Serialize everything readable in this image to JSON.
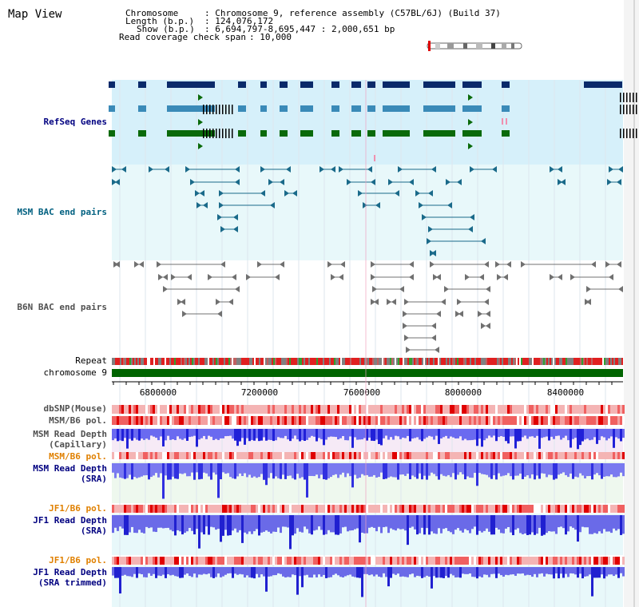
{
  "title": "Map View",
  "info": {
    "chromosome_label": "Chromosome",
    "chromosome_value": ": Chromosome 9, reference assembly (C57BL/6J) (Build 37)",
    "length_label": "Length (b.p.)",
    "length_value": ": 124,076,172",
    "show_label": "Show (b.p.)",
    "show_value": ": 6,694,797-8,695,447 : 2,000,651 bp",
    "coverage_label": "Read coverage check span",
    "coverage_value": ": 10,000"
  },
  "tracks": {
    "refseq": "RefSeq Genes",
    "msm_bac": "MSM BAC end pairs",
    "b6n_bac": "B6N BAC end pairs",
    "repeat": "Repeat",
    "chromosome": "chromosome 9",
    "dbsnp": "dbSNP(Mouse)",
    "msm_pol1": "MSM/B6 pol.",
    "msm_depth_cap_1": "MSM Read Depth",
    "msm_depth_cap_2": "(Capillary)",
    "msm_pol2": "MSM/B6 pol.",
    "msm_depth_sra_1": "MSM Read Depth",
    "msm_depth_sra_2": "(SRA)",
    "jf1_pol1": "JF1/B6 pol.",
    "jf1_depth_sra_1": "JF1 Read Depth",
    "jf1_depth_sra_2": "(SRA)",
    "jf1_pol2": "JF1/B6 pol.",
    "jf1_depth_trim_1": "JF1 Read Depth",
    "jf1_depth_trim_2": "(SRA trimmed)"
  },
  "axis": {
    "ticks": [
      "6800000",
      "7200000",
      "7600000",
      "8000000",
      "8400000"
    ]
  },
  "colors": {
    "refseq_bg": "#d6f0fa",
    "bac_bg": "#e8f8fa",
    "gene_navy": "#0a2a6a",
    "gene_blue": "#3a8ab8",
    "gene_green": "#0a6a0a",
    "msm_bac": "#1a6a8a",
    "b6n_bac": "#707070",
    "label_navy": "#000080",
    "label_teal": "#006080",
    "label_gray": "#505050",
    "label_orange": "#e08000",
    "chrom_green": "#006400"
  }
}
